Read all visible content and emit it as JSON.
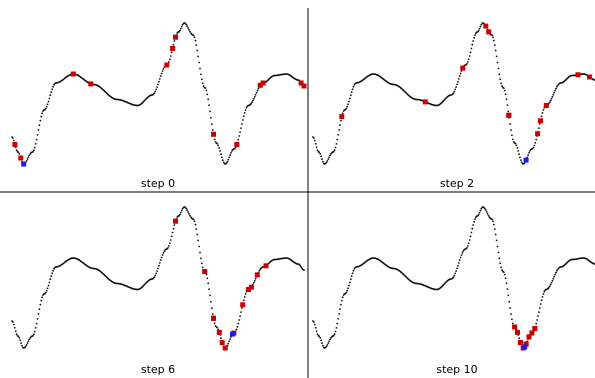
{
  "figure": {
    "panels": [
      {
        "label": "step 0",
        "particles": [
          0.01,
          0.03,
          0.21,
          0.27,
          0.53,
          0.55,
          0.56,
          0.69,
          0.77,
          0.85,
          0.86,
          0.99,
          1.0
        ],
        "best": 0.04
      },
      {
        "label": "step 2",
        "particles": [
          0.1,
          0.39,
          0.52,
          0.61,
          0.6,
          0.68,
          0.68,
          0.78,
          0.79,
          0.81,
          0.92,
          0.96,
          1.0
        ],
        "best": 0.74
      },
      {
        "label": "step 6",
        "particles": [
          0.56,
          0.66,
          0.69,
          0.69,
          0.71,
          0.72,
          0.73,
          0.76,
          0.79,
          0.81,
          0.82,
          0.84,
          0.87
        ],
        "best": 0.755
      },
      {
        "label": "step 10",
        "particles": [
          0.7,
          0.71,
          0.72,
          0.72,
          0.73,
          0.74,
          0.74,
          0.75,
          0.75,
          0.76,
          0.77
        ],
        "best": 0.735
      }
    ],
    "colors": {
      "curve": "#111111",
      "particle": "#cc0000",
      "best": "#1a1aee",
      "divider": "#000000"
    }
  }
}
